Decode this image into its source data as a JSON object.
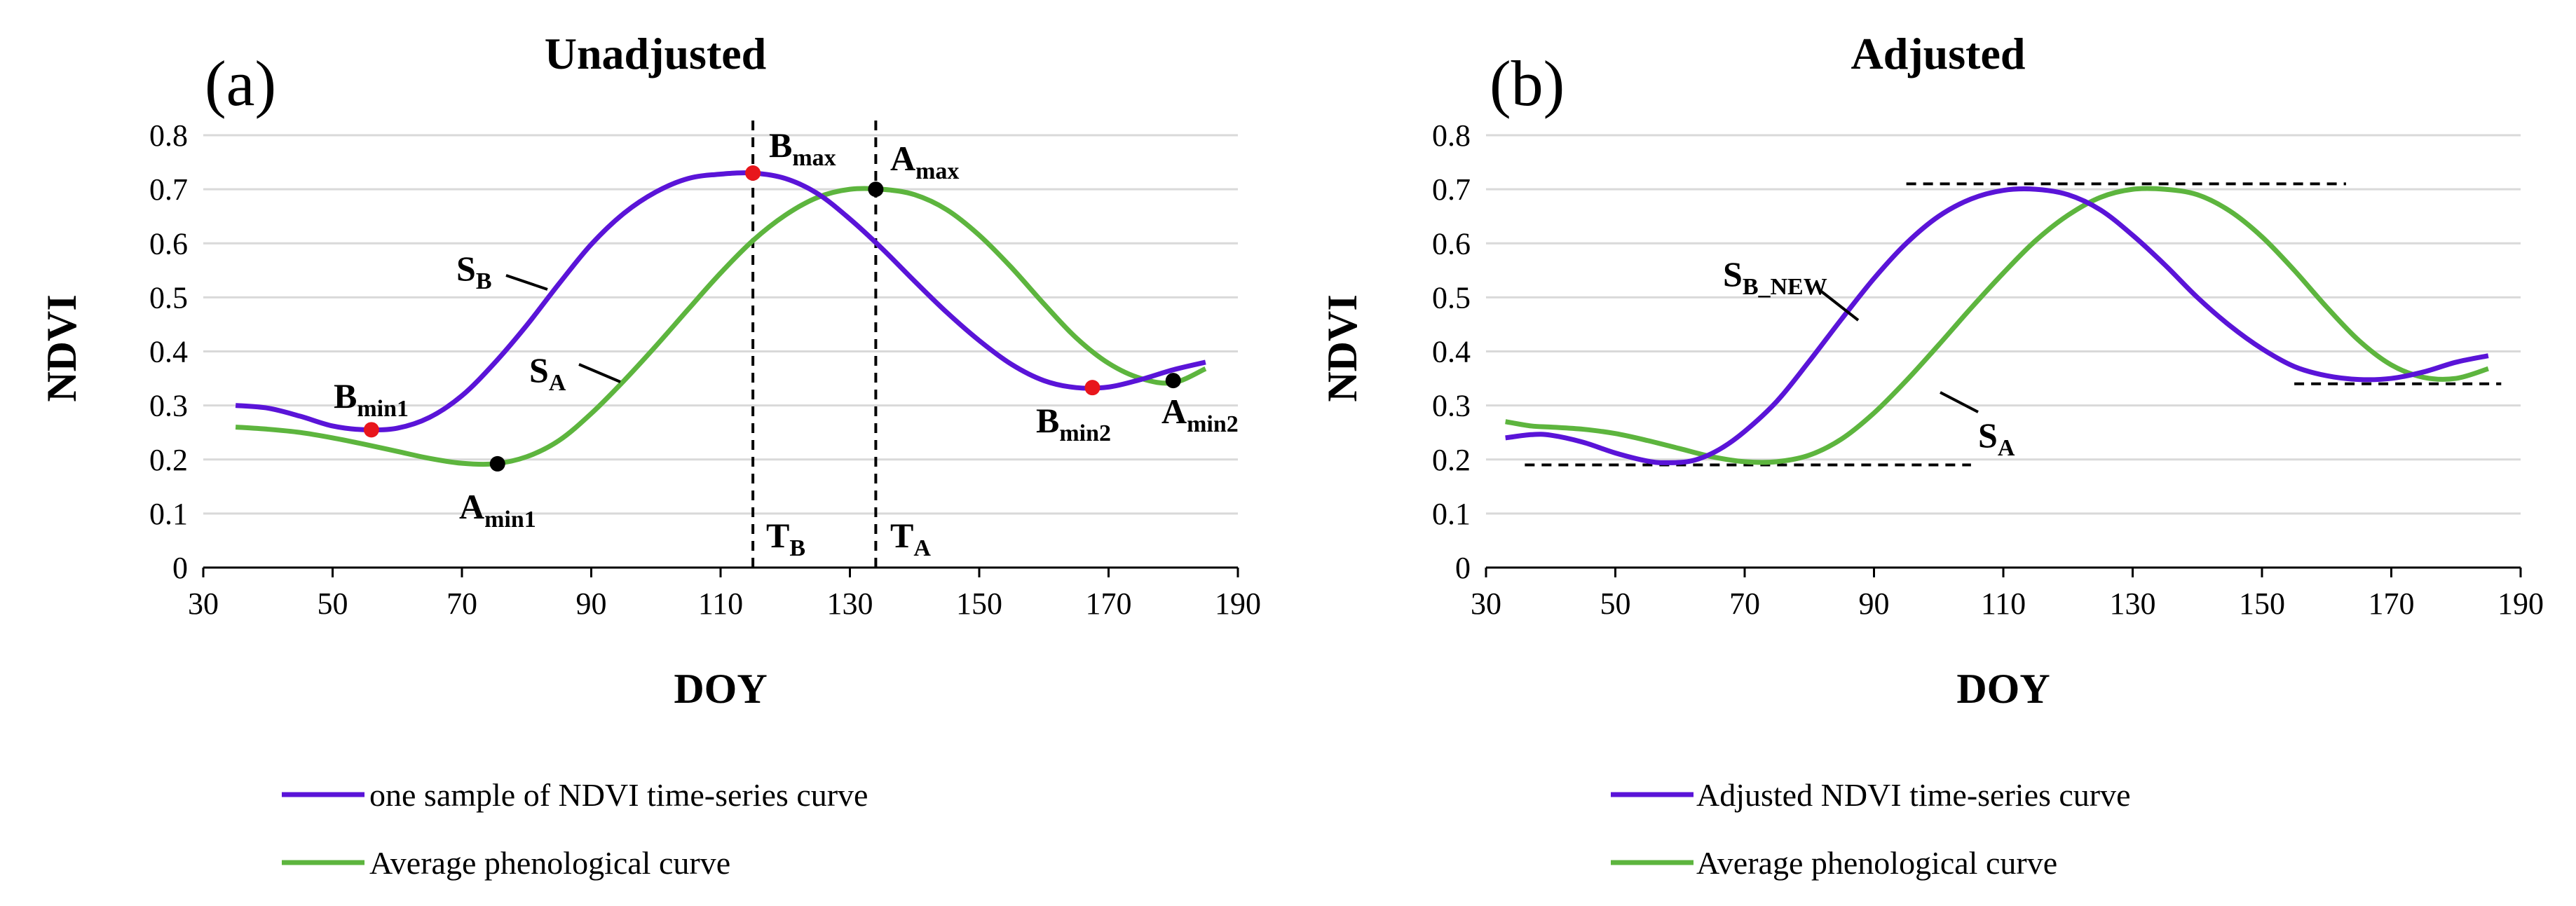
{
  "colors": {
    "purple": "#5a14d8",
    "green": "#5db53e",
    "grid": "#d9d9d9",
    "red_dot": "#e8161c",
    "black_dot": "#000000"
  },
  "chart_data": [
    {
      "type": "line",
      "panel_label": "(a)",
      "title": "Unadjusted",
      "xlabel": "DOY",
      "ylabel": "NDVI",
      "xlim": [
        30,
        190
      ],
      "ylim": [
        0,
        0.8
      ],
      "x_ticks": [
        "30",
        "50",
        "70",
        "90",
        "110",
        "130",
        "150",
        "170",
        "190"
      ],
      "y_ticks": [
        "0",
        "0.1",
        "0.2",
        "0.3",
        "0.4",
        "0.5",
        "0.6",
        "0.7",
        "0.8"
      ],
      "grid": true,
      "series": [
        {
          "name": "one sample of NDVI time-series curve",
          "color": "#5a14d8",
          "points": [
            [
              35,
              0.3
            ],
            [
              40,
              0.295
            ],
            [
              45,
              0.28
            ],
            [
              50,
              0.262
            ],
            [
              55,
              0.255
            ],
            [
              60,
              0.258
            ],
            [
              65,
              0.278
            ],
            [
              70,
              0.318
            ],
            [
              75,
              0.378
            ],
            [
              80,
              0.448
            ],
            [
              85,
              0.525
            ],
            [
              90,
              0.598
            ],
            [
              95,
              0.655
            ],
            [
              100,
              0.695
            ],
            [
              105,
              0.72
            ],
            [
              110,
              0.728
            ],
            [
              115,
              0.73
            ],
            [
              120,
              0.72
            ],
            [
              125,
              0.692
            ],
            [
              130,
              0.645
            ],
            [
              135,
              0.59
            ],
            [
              140,
              0.53
            ],
            [
              145,
              0.472
            ],
            [
              150,
              0.42
            ],
            [
              155,
              0.376
            ],
            [
              160,
              0.346
            ],
            [
              165,
              0.333
            ],
            [
              170,
              0.334
            ],
            [
              175,
              0.348
            ],
            [
              180,
              0.366
            ],
            [
              185,
              0.38
            ]
          ]
        },
        {
          "name": "Average phenological curve",
          "color": "#5db53e",
          "points": [
            [
              35,
              0.26
            ],
            [
              40,
              0.256
            ],
            [
              45,
              0.25
            ],
            [
              50,
              0.24
            ],
            [
              55,
              0.228
            ],
            [
              60,
              0.215
            ],
            [
              65,
              0.202
            ],
            [
              70,
              0.193
            ],
            [
              75,
              0.192
            ],
            [
              80,
              0.205
            ],
            [
              85,
              0.235
            ],
            [
              90,
              0.285
            ],
            [
              95,
              0.345
            ],
            [
              100,
              0.41
            ],
            [
              105,
              0.478
            ],
            [
              110,
              0.545
            ],
            [
              115,
              0.605
            ],
            [
              120,
              0.652
            ],
            [
              125,
              0.685
            ],
            [
              130,
              0.7
            ],
            [
              135,
              0.7
            ],
            [
              140,
              0.69
            ],
            [
              145,
              0.662
            ],
            [
              150,
              0.615
            ],
            [
              155,
              0.555
            ],
            [
              160,
              0.488
            ],
            [
              165,
              0.425
            ],
            [
              170,
              0.378
            ],
            [
              175,
              0.35
            ],
            [
              180,
              0.342
            ],
            [
              185,
              0.368
            ]
          ]
        }
      ],
      "points": [
        {
          "name": "B",
          "sub": "min1",
          "x": 56,
          "y": 0.255,
          "color": "#e8161c"
        },
        {
          "name": "A",
          "sub": "min1",
          "x": 75.5,
          "y": 0.192,
          "color": "#000000"
        },
        {
          "name": "B",
          "sub": "max",
          "x": 115,
          "y": 0.73,
          "color": "#e8161c"
        },
        {
          "name": "A",
          "sub": "max",
          "x": 134,
          "y": 0.7,
          "color": "#000000"
        },
        {
          "name": "B",
          "sub": "min2",
          "x": 167.5,
          "y": 0.333,
          "color": "#e8161c"
        },
        {
          "name": "A",
          "sub": "min2",
          "x": 180,
          "y": 0.346,
          "color": "#000000"
        }
      ],
      "vlines": [
        {
          "x": 115,
          "label": "T",
          "sub": "B"
        },
        {
          "x": 134,
          "label": "T",
          "sub": "A"
        }
      ],
      "curve_labels": [
        {
          "name": "S",
          "sub": "B"
        },
        {
          "name": "S",
          "sub": "A"
        }
      ],
      "legend": [
        "one sample of NDVI time-series curve",
        "Average phenological curve"
      ]
    },
    {
      "type": "line",
      "panel_label": "(b)",
      "title": "Adjusted",
      "xlabel": "DOY",
      "ylabel": "NDVI",
      "xlim": [
        30,
        190
      ],
      "ylim": [
        0,
        0.8
      ],
      "x_ticks": [
        "30",
        "50",
        "70",
        "90",
        "110",
        "130",
        "150",
        "170",
        "190"
      ],
      "y_ticks": [
        "0",
        "0.1",
        "0.2",
        "0.3",
        "0.4",
        "0.5",
        "0.6",
        "0.7",
        "0.8"
      ],
      "grid": true,
      "series": [
        {
          "name": "Adjusted NDVI time-series curve",
          "color": "#5a14d8",
          "points": [
            [
              33,
              0.24
            ],
            [
              37,
              0.246
            ],
            [
              40,
              0.245
            ],
            [
              45,
              0.232
            ],
            [
              50,
              0.212
            ],
            [
              55,
              0.197
            ],
            [
              58,
              0.194
            ],
            [
              62,
              0.198
            ],
            [
              66,
              0.218
            ],
            [
              70,
              0.252
            ],
            [
              75,
              0.308
            ],
            [
              80,
              0.382
            ],
            [
              85,
              0.46
            ],
            [
              90,
              0.535
            ],
            [
              95,
              0.6
            ],
            [
              100,
              0.65
            ],
            [
              105,
              0.682
            ],
            [
              110,
              0.698
            ],
            [
              115,
              0.7
            ],
            [
              120,
              0.69
            ],
            [
              125,
              0.662
            ],
            [
              130,
              0.615
            ],
            [
              135,
              0.56
            ],
            [
              140,
              0.5
            ],
            [
              145,
              0.448
            ],
            [
              150,
              0.405
            ],
            [
              155,
              0.372
            ],
            [
              160,
              0.355
            ],
            [
              165,
              0.348
            ],
            [
              170,
              0.35
            ],
            [
              175,
              0.362
            ],
            [
              180,
              0.38
            ],
            [
              185,
              0.392
            ]
          ]
        },
        {
          "name": "Average phenological curve",
          "color": "#5db53e",
          "points": [
            [
              33,
              0.27
            ],
            [
              37,
              0.262
            ],
            [
              40,
              0.26
            ],
            [
              45,
              0.256
            ],
            [
              50,
              0.248
            ],
            [
              55,
              0.235
            ],
            [
              60,
              0.22
            ],
            [
              65,
              0.205
            ],
            [
              70,
              0.196
            ],
            [
              75,
              0.196
            ],
            [
              80,
              0.208
            ],
            [
              85,
              0.238
            ],
            [
              90,
              0.286
            ],
            [
              95,
              0.346
            ],
            [
              100,
              0.412
            ],
            [
              105,
              0.48
            ],
            [
              110,
              0.545
            ],
            [
              115,
              0.605
            ],
            [
              120,
              0.652
            ],
            [
              125,
              0.685
            ],
            [
              130,
              0.7
            ],
            [
              135,
              0.7
            ],
            [
              140,
              0.69
            ],
            [
              145,
              0.66
            ],
            [
              150,
              0.612
            ],
            [
              155,
              0.55
            ],
            [
              160,
              0.482
            ],
            [
              165,
              0.42
            ],
            [
              170,
              0.375
            ],
            [
              175,
              0.352
            ],
            [
              180,
              0.35
            ],
            [
              185,
              0.368
            ]
          ]
        }
      ],
      "hlines": [
        {
          "y": 0.19,
          "x_start": 36,
          "x_end": 105
        },
        {
          "y": 0.71,
          "x_start": 95,
          "x_end": 163
        },
        {
          "y": 0.34,
          "x_start": 155,
          "x_end": 187
        }
      ],
      "curve_labels": [
        {
          "name": "S",
          "sub": "B_NEW"
        },
        {
          "name": "S",
          "sub": "A"
        }
      ],
      "legend": [
        "Adjusted NDVI time-series curve",
        "Average phenological curve"
      ]
    }
  ]
}
